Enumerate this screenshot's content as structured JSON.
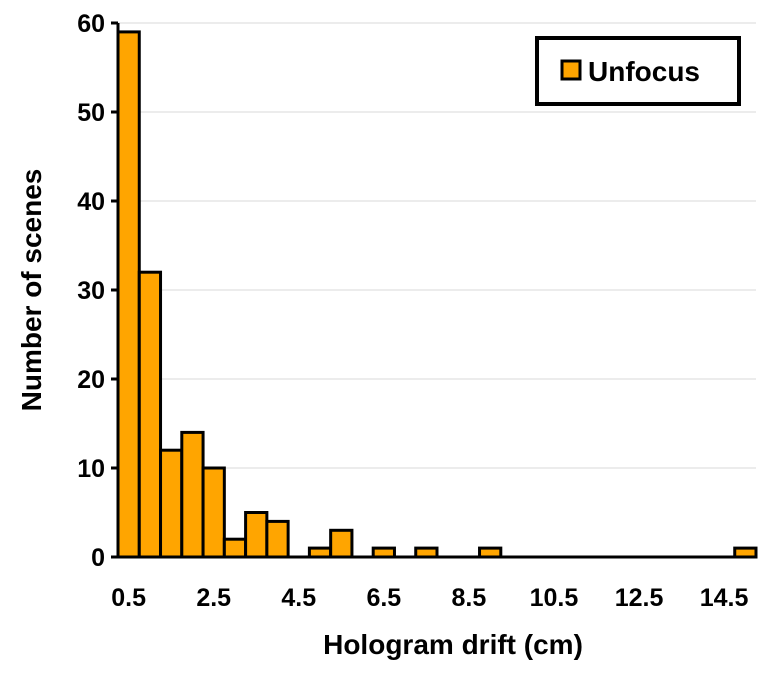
{
  "chart_data": {
    "type": "bar",
    "xlabel": "Hologram drift (cm)",
    "ylabel": "Number of scenes",
    "ylim": [
      0,
      60
    ],
    "y_ticks": [
      "0",
      "10",
      "20",
      "30",
      "40",
      "50",
      "60"
    ],
    "x_tick_labels": [
      "0.5",
      "2.5",
      "4.5",
      "6.5",
      "8.5",
      "10.5",
      "12.5",
      "14.5"
    ],
    "bin_width": 0.5,
    "categories": [
      "0.5",
      "1",
      "1.5",
      "2",
      "2.5",
      "3",
      "3.5",
      "4",
      "4.5",
      "5",
      "5.5",
      "6",
      "6.5",
      "7",
      "7.5",
      "8",
      "8.5",
      "9",
      "9.5",
      "10",
      "10.5",
      "11",
      "11.5",
      "12",
      "12.5",
      "13",
      "13.5",
      "14",
      "14.5",
      "15"
    ],
    "series": [
      {
        "name": "Unfocus",
        "color": "#FFA500",
        "values": [
          59,
          32,
          12,
          14,
          10,
          2,
          5,
          4,
          0,
          1,
          3,
          0,
          1,
          0,
          1,
          0,
          0,
          1,
          0,
          0,
          0,
          0,
          0,
          0,
          0,
          0,
          0,
          0,
          0,
          1
        ]
      }
    ],
    "grid": true,
    "legend": "top-right"
  }
}
